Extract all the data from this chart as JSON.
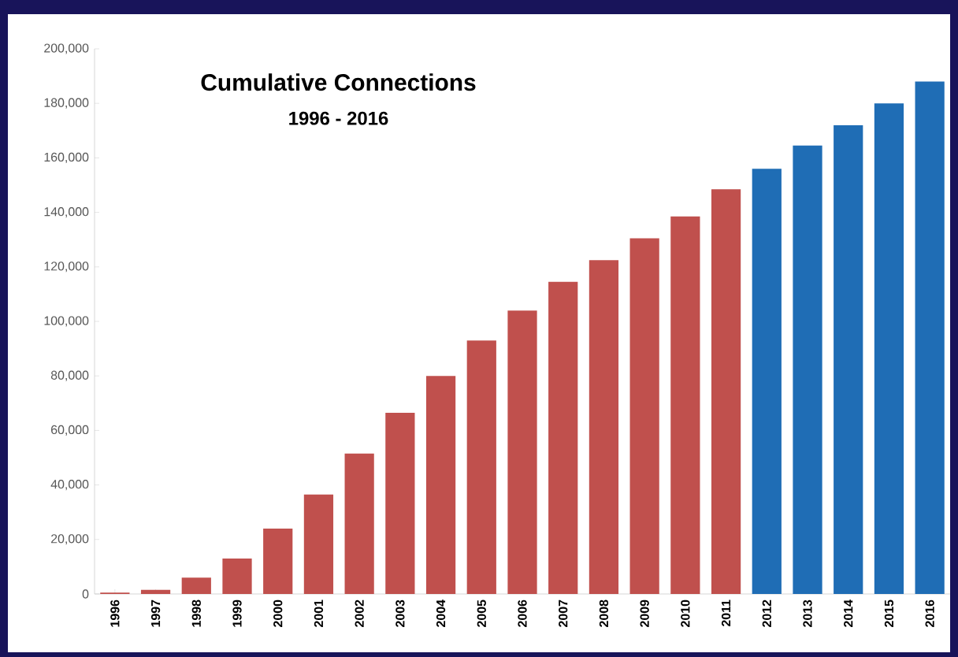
{
  "chart_data": {
    "type": "bar",
    "title": "Cumulative Connections",
    "subtitle": "1996 - 2016",
    "categories": [
      "1996",
      "1997",
      "1998",
      "1999",
      "2000",
      "2001",
      "2002",
      "2003",
      "2004",
      "2005",
      "2006",
      "2007",
      "2008",
      "2009",
      "2010",
      "2011",
      "2012",
      "2013",
      "2014",
      "2015",
      "2016"
    ],
    "values": [
      500,
      1500,
      6000,
      13000,
      24000,
      36500,
      51500,
      66500,
      80000,
      93000,
      104000,
      114500,
      122500,
      130500,
      138500,
      148500,
      156000,
      164500,
      172000,
      180000,
      188000
    ],
    "colors": [
      "#c0504d",
      "#c0504d",
      "#c0504d",
      "#c0504d",
      "#c0504d",
      "#c0504d",
      "#c0504d",
      "#c0504d",
      "#c0504d",
      "#c0504d",
      "#c0504d",
      "#c0504d",
      "#c0504d",
      "#c0504d",
      "#c0504d",
      "#c0504d",
      "#1f6db5",
      "#1f6db5",
      "#1f6db5",
      "#1f6db5",
      "#1f6db5"
    ],
    "ylim": [
      0,
      200000
    ],
    "yticks": [
      {
        "value": 0,
        "label": "0"
      },
      {
        "value": 20000,
        "label": "20,000"
      },
      {
        "value": 40000,
        "label": "40,000"
      },
      {
        "value": 60000,
        "label": "60,000"
      },
      {
        "value": 80000,
        "label": "80,000"
      },
      {
        "value": 100000,
        "label": "100,000"
      },
      {
        "value": 120000,
        "label": "120,000"
      },
      {
        "value": 140000,
        "label": "140,000"
      },
      {
        "value": 160000,
        "label": "160,000"
      },
      {
        "value": 180000,
        "label": "180,000"
      },
      {
        "value": 200000,
        "label": "200,000"
      }
    ],
    "grid": false
  }
}
